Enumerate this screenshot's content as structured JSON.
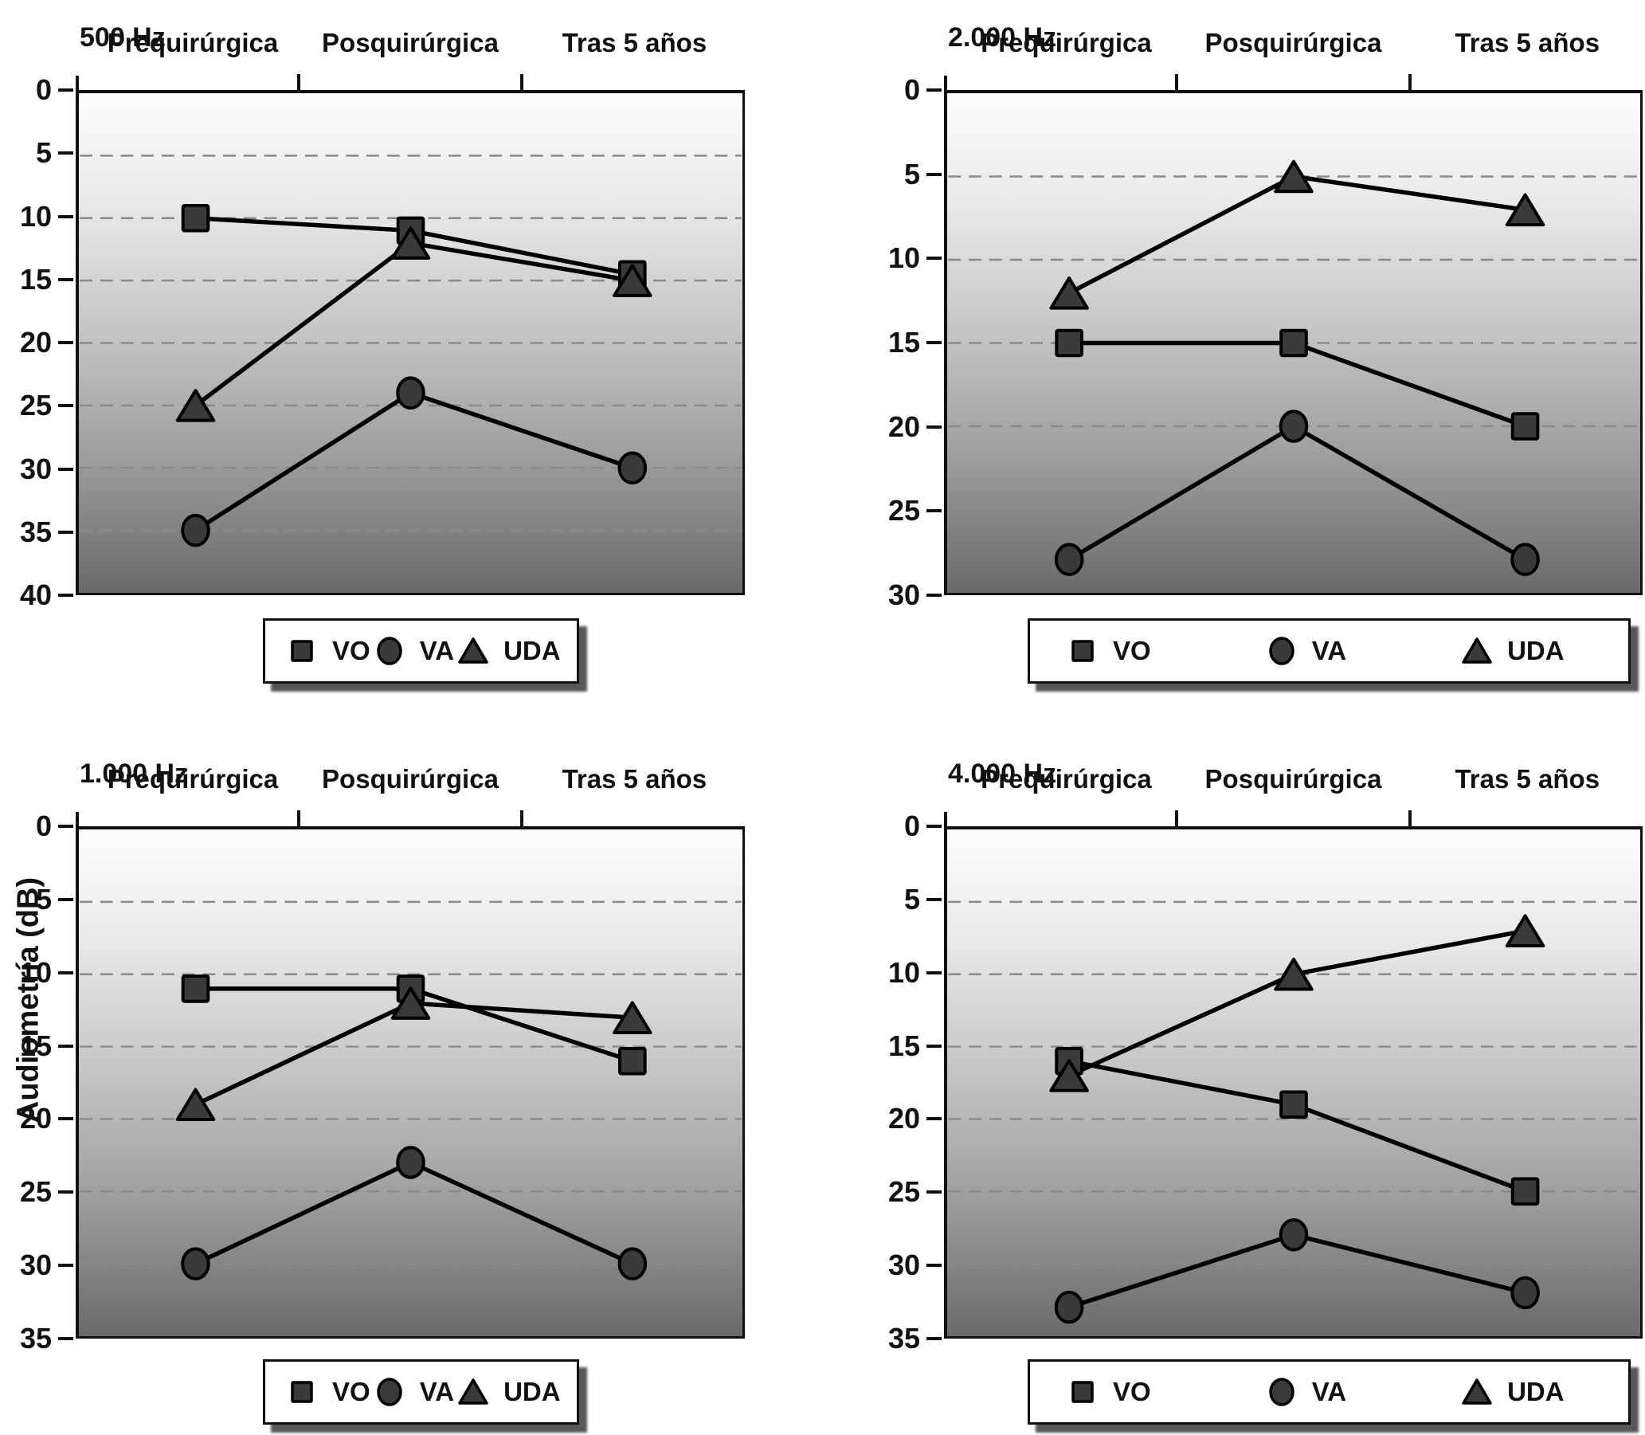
{
  "figure": {
    "ylabel": "Audiometría (dB)",
    "categories": [
      "Prequirúrgica",
      "Posquirúrgica",
      "Tras 5 años"
    ],
    "legend": [
      {
        "symbol": "square",
        "label": "VO"
      },
      {
        "symbol": "circle",
        "label": "VA"
      },
      {
        "symbol": "triangle",
        "label": "UDA"
      }
    ],
    "colors": {
      "marker_fill": "#3a3a3a",
      "line": "#000000",
      "grid": "#8a8a8a",
      "axis": "#111111",
      "gradient_top": "#fdfdfd",
      "gradient_bottom": "#6a6a6a"
    }
  },
  "chart_data": [
    {
      "type": "line",
      "title": "500 Hz",
      "position": "top-left",
      "categories": [
        "Prequirúrgica",
        "Posquirúrgica",
        "Tras 5 años"
      ],
      "ylim": [
        0,
        40
      ],
      "ytick_step": 5,
      "y_axis_inverted": true,
      "grid": "dashed horizontal",
      "legend_position": "below",
      "series": [
        {
          "name": "VO",
          "marker": "square",
          "values": [
            10,
            11,
            14.5
          ]
        },
        {
          "name": "VA",
          "marker": "circle",
          "values": [
            35,
            24,
            30
          ]
        },
        {
          "name": "UDA",
          "marker": "triangle",
          "values": [
            25,
            12,
            15
          ]
        }
      ]
    },
    {
      "type": "line",
      "title": "2.000 Hz",
      "position": "top-right",
      "categories": [
        "Prequirúrgica",
        "Posquirúrgica",
        "Tras 5 años"
      ],
      "ylim": [
        0,
        30
      ],
      "ytick_step": 5,
      "y_axis_inverted": true,
      "grid": "dashed horizontal",
      "legend_position": "below",
      "series": [
        {
          "name": "VO",
          "marker": "square",
          "values": [
            15,
            15,
            20
          ]
        },
        {
          "name": "VA",
          "marker": "circle",
          "values": [
            28,
            20,
            28
          ]
        },
        {
          "name": "UDA",
          "marker": "triangle",
          "values": [
            12,
            5,
            7
          ]
        }
      ]
    },
    {
      "type": "line",
      "title": "1.000 Hz",
      "position": "bottom-left",
      "categories": [
        "Prequirúrgica",
        "Posquirúrgica",
        "Tras 5 años"
      ],
      "ylim": [
        0,
        35
      ],
      "ytick_step": 5,
      "y_axis_inverted": true,
      "grid": "dashed horizontal",
      "legend_position": "below",
      "series": [
        {
          "name": "VO",
          "marker": "square",
          "values": [
            11,
            11,
            16
          ]
        },
        {
          "name": "VA",
          "marker": "circle",
          "values": [
            30,
            23,
            30
          ]
        },
        {
          "name": "UDA",
          "marker": "triangle",
          "values": [
            19,
            12,
            13
          ]
        }
      ]
    },
    {
      "type": "line",
      "title": "4.000 Hz",
      "position": "bottom-right",
      "categories": [
        "Prequirúrgica",
        "Posquirúrgica",
        "Tras 5 años"
      ],
      "ylim": [
        0,
        35
      ],
      "ytick_step": 5,
      "y_axis_inverted": true,
      "grid": "dashed horizontal",
      "legend_position": "below",
      "series": [
        {
          "name": "VO",
          "marker": "square",
          "values": [
            16,
            19,
            25
          ]
        },
        {
          "name": "VA",
          "marker": "circle",
          "values": [
            33,
            28,
            32
          ]
        },
        {
          "name": "UDA",
          "marker": "triangle",
          "values": [
            17,
            10,
            7
          ]
        }
      ]
    }
  ]
}
